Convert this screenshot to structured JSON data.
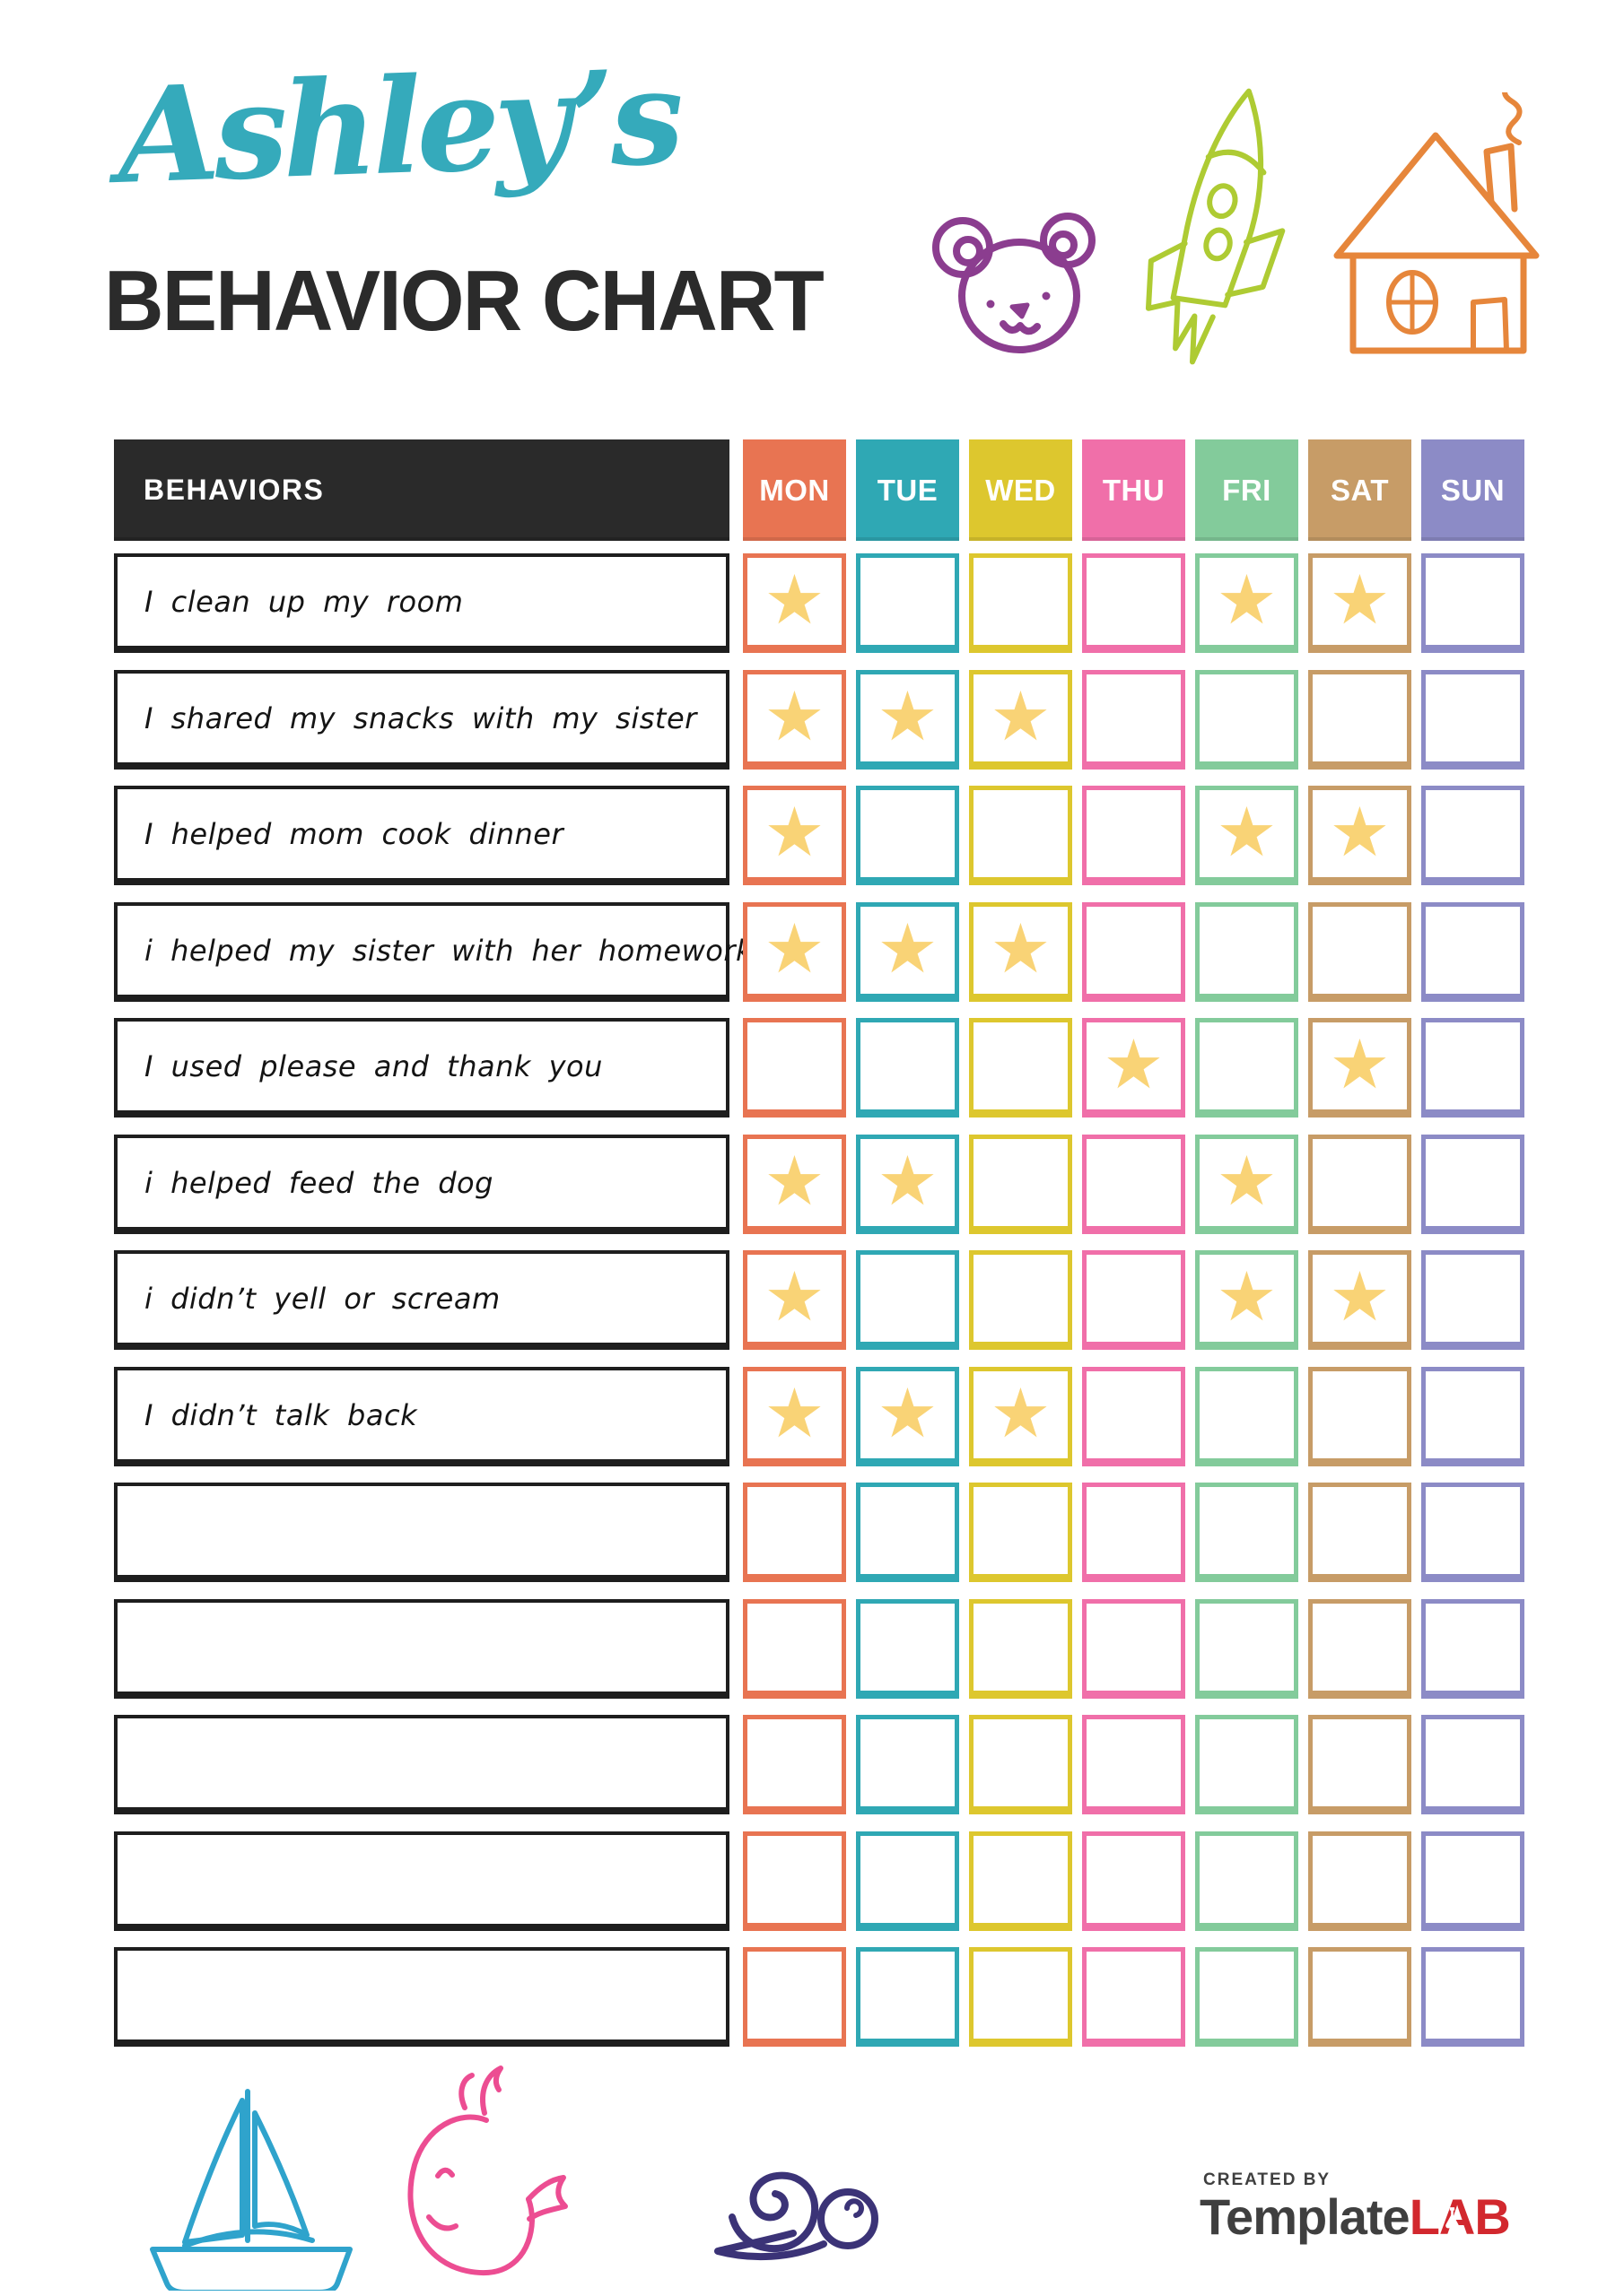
{
  "header": {
    "name_script": "Ashley’s",
    "name_color": "#35AABB",
    "title": "BEHAVIOR CHART",
    "title_color": "#2B2B2B"
  },
  "doodles": {
    "colors": {
      "bear": "#8B3D8F",
      "rocket": "#AECB33",
      "house": "#E6863B",
      "sailboat": "#2FA3CC",
      "whale": "#EC4D92",
      "snail": "#3B3377"
    }
  },
  "table": {
    "behaviors_header": "BEHAVIORS",
    "header_bg": "#2A2A2A",
    "days": [
      {
        "label": "MON",
        "color": "#E87452"
      },
      {
        "label": "TUE",
        "color": "#2FA8B4"
      },
      {
        "label": "WED",
        "color": "#DDC72E"
      },
      {
        "label": "THU",
        "color": "#F06FA9"
      },
      {
        "label": "FRI",
        "color": "#83CB9B"
      },
      {
        "label": "SAT",
        "color": "#C79C67"
      },
      {
        "label": "SUN",
        "color": "#8C8BC6"
      }
    ],
    "star_glyph": "★",
    "star_color": "#F9D376",
    "rows": [
      {
        "label": "I clean up my room",
        "stars": [
          1,
          0,
          0,
          0,
          1,
          1,
          0
        ]
      },
      {
        "label": "I shared my snacks with my sister",
        "stars": [
          1,
          1,
          1,
          0,
          0,
          0,
          0
        ]
      },
      {
        "label": "I helped mom cook dinner",
        "stars": [
          1,
          0,
          0,
          0,
          1,
          1,
          0
        ]
      },
      {
        "label": "i helped my sister with her homework",
        "stars": [
          1,
          1,
          1,
          0,
          0,
          0,
          0
        ]
      },
      {
        "label": "I used please and thank you",
        "stars": [
          0,
          0,
          0,
          1,
          0,
          1,
          0
        ]
      },
      {
        "label": "i helped feed the dog",
        "stars": [
          1,
          1,
          0,
          0,
          1,
          0,
          0
        ]
      },
      {
        "label": "i didn’t yell or scream",
        "stars": [
          1,
          0,
          0,
          0,
          1,
          1,
          0
        ]
      },
      {
        "label": "I didn’t talk back",
        "stars": [
          1,
          1,
          1,
          0,
          0,
          0,
          0
        ]
      },
      {
        "label": "",
        "stars": [
          0,
          0,
          0,
          0,
          0,
          0,
          0
        ]
      },
      {
        "label": "",
        "stars": [
          0,
          0,
          0,
          0,
          0,
          0,
          0
        ]
      },
      {
        "label": "",
        "stars": [
          0,
          0,
          0,
          0,
          0,
          0,
          0
        ]
      },
      {
        "label": "",
        "stars": [
          0,
          0,
          0,
          0,
          0,
          0,
          0
        ]
      },
      {
        "label": "",
        "stars": [
          0,
          0,
          0,
          0,
          0,
          0,
          0
        ]
      }
    ]
  },
  "footer": {
    "created_by": "CREATED BY",
    "brand_template": "Template",
    "brand_lab": "LAB",
    "brand_color": "#3F3F3F",
    "lab_color": "#D2282E"
  }
}
